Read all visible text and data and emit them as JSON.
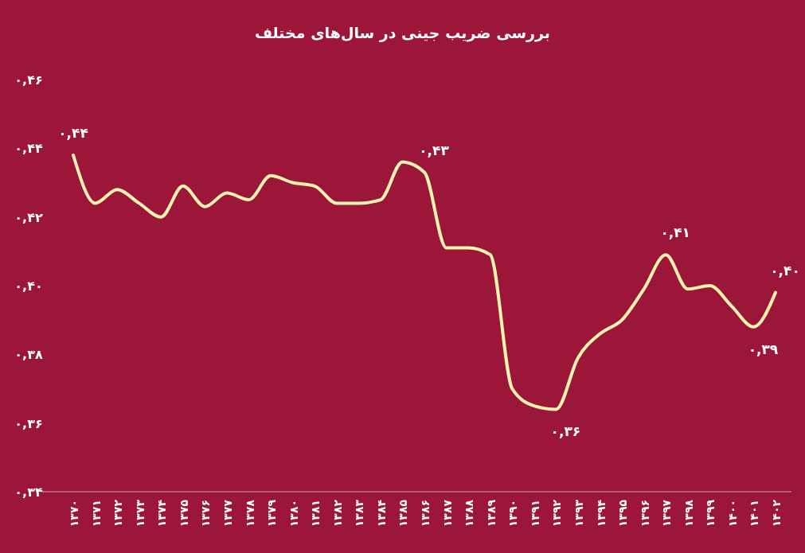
{
  "chart_data": {
    "type": "line",
    "title": "بررسی ضریب جینی در سال‌های مختلف",
    "categories": [
      "۱۳۷۰",
      "۱۳۷۱",
      "۱۳۷۲",
      "۱۳۷۳",
      "۱۳۷۴",
      "۱۳۷۵",
      "۱۳۷۶",
      "۱۳۷۷",
      "۱۳۷۸",
      "۱۳۷۹",
      "۱۳۸۰",
      "۱۳۸۱",
      "۱۳۸۲",
      "۱۳۸۳",
      "۱۳۸۴",
      "۱۳۸۵",
      "۱۳۸۶",
      "۱۳۸۷",
      "۱۳۸۸",
      "۱۳۸۹",
      "۱۳۹۰",
      "۱۳۹۱",
      "۱۳۹۲",
      "۱۳۹۳",
      "۱۳۹۴",
      "۱۳۹۵",
      "۱۳۹۶",
      "۱۳۹۷",
      "۱۳۹۸",
      "۱۳۹۹",
      "۱۴۰۰",
      "۱۴۰۱",
      "۱۴۰۲"
    ],
    "series": [
      {
        "color": "#fff3b0",
        "values": [
          0.438,
          0.424,
          0.428,
          0.424,
          0.42,
          0.429,
          0.423,
          0.427,
          0.425,
          0.432,
          0.43,
          0.429,
          0.424,
          0.424,
          0.425,
          0.436,
          0.433,
          0.411,
          0.411,
          0.409,
          0.37,
          0.365,
          0.364,
          0.379,
          0.386,
          0.39,
          0.399,
          0.409,
          0.399,
          0.4,
          0.394,
          0.388,
          0.398
        ],
        "value_labels": [
          "۰,۴۴",
          null,
          null,
          null,
          null,
          null,
          null,
          null,
          null,
          null,
          null,
          null,
          null,
          null,
          null,
          null,
          "۰,۴۳",
          null,
          null,
          null,
          null,
          null,
          "۰,۳۶",
          null,
          null,
          null,
          null,
          "۰,۴۱",
          null,
          null,
          null,
          "۰,۳۹",
          "۰,۴۰"
        ]
      }
    ],
    "ylim": [
      0.34,
      0.46
    ],
    "yticks": [
      {
        "value": 0.34,
        "label": "۰,۳۴"
      },
      {
        "value": 0.36,
        "label": "۰,۳۶"
      },
      {
        "value": 0.38,
        "label": "۰,۳۸"
      },
      {
        "value": 0.4,
        "label": "۰,۴۰"
      },
      {
        "value": 0.42,
        "label": "۰,۴۲"
      },
      {
        "value": 0.44,
        "label": "۰,۴۴"
      },
      {
        "value": 0.46,
        "label": "۰,۴۶"
      }
    ],
    "marker": "none",
    "line_style": "solid"
  }
}
